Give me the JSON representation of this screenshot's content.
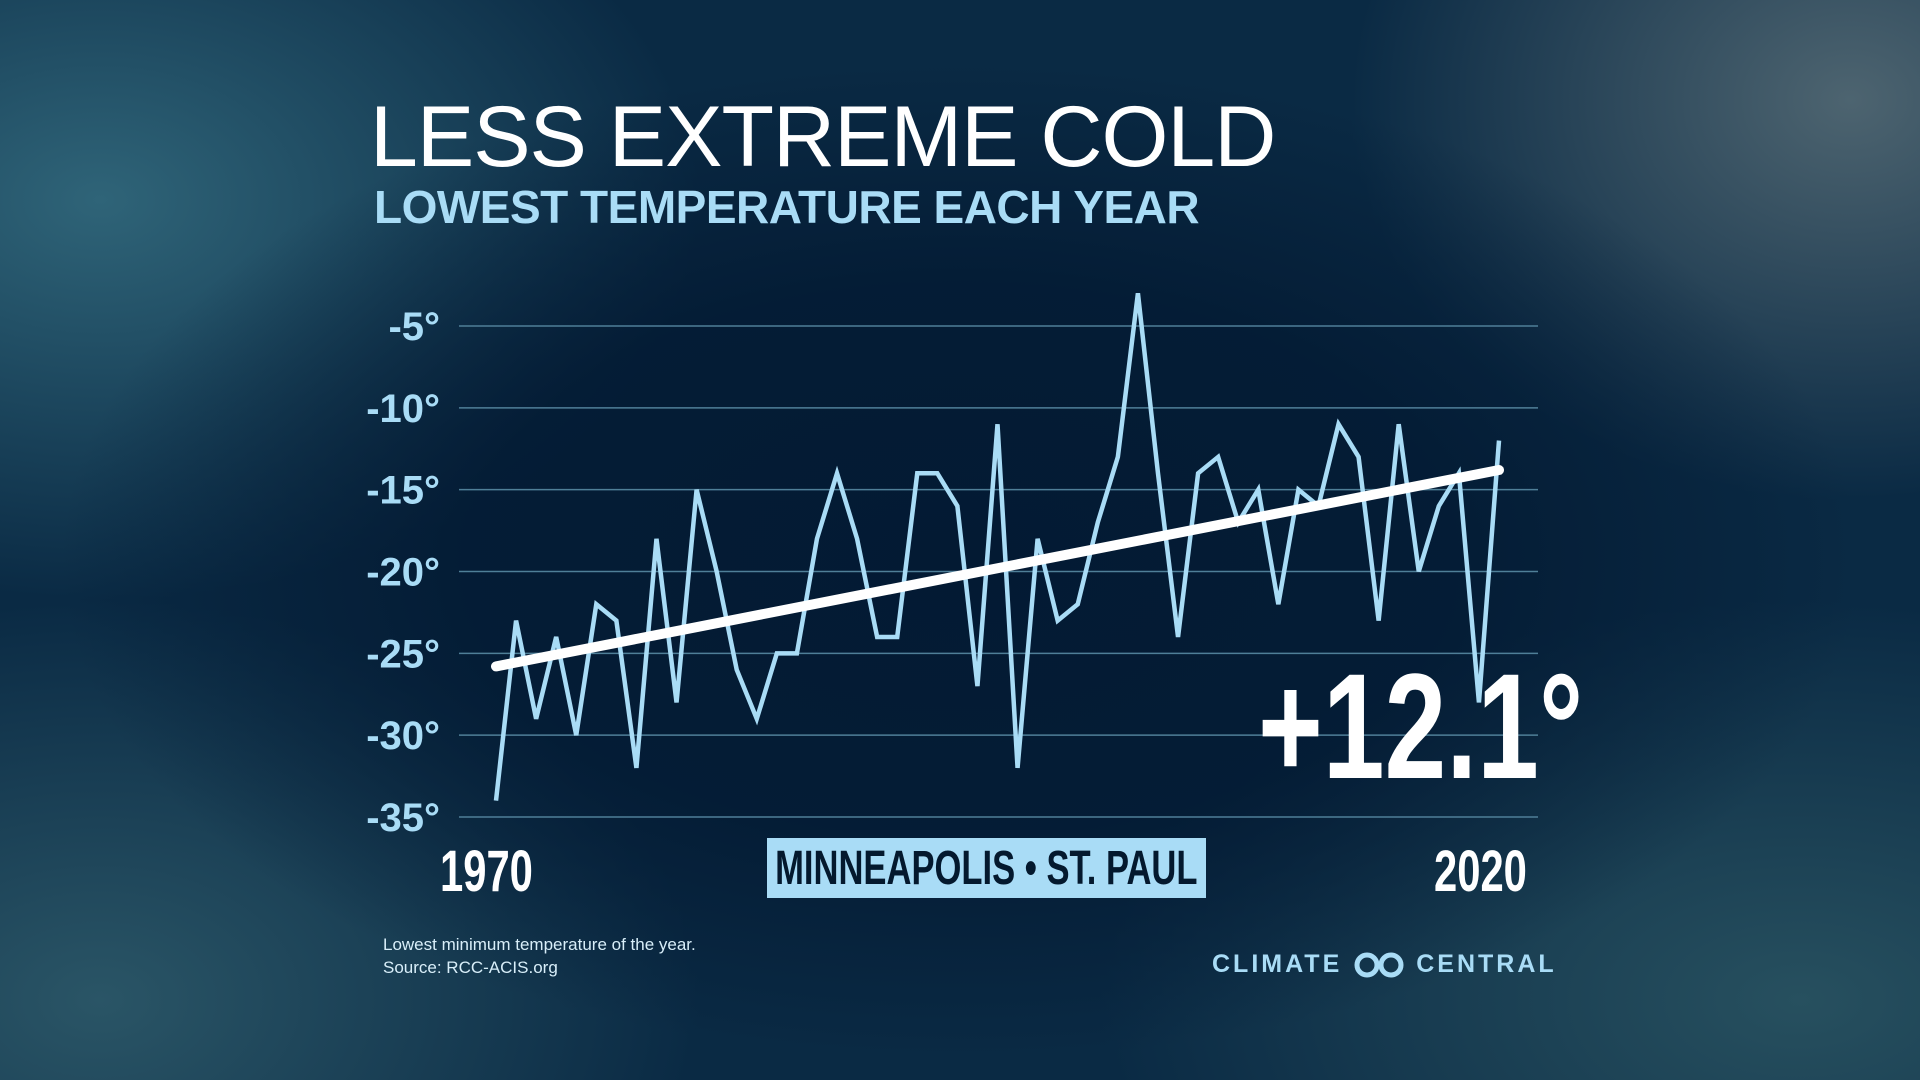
{
  "header": {
    "title": "LESS EXTREME COLD",
    "subtitle": "LOWEST TEMPERATURE EACH YEAR"
  },
  "chart_data": {
    "type": "line",
    "title": "LESS EXTREME COLD",
    "subtitle": "LOWEST TEMPERATURE EACH YEAR",
    "xlabel": "",
    "ylabel": "",
    "x_tick_labels": [
      "1970",
      "2020"
    ],
    "y_tick_labels": [
      "-5°",
      "-10°",
      "-15°",
      "-20°",
      "-25°",
      "-30°",
      "-35°"
    ],
    "y_ticks": [
      -5,
      -10,
      -15,
      -20,
      -25,
      -30,
      -35
    ],
    "xlim": [
      1970,
      2020
    ],
    "ylim": [
      -35,
      -5
    ],
    "grid": true,
    "x": [
      1970,
      1971,
      1972,
      1973,
      1974,
      1975,
      1976,
      1977,
      1978,
      1979,
      1980,
      1981,
      1982,
      1983,
      1984,
      1985,
      1986,
      1987,
      1988,
      1989,
      1990,
      1991,
      1992,
      1993,
      1994,
      1995,
      1996,
      1997,
      1998,
      1999,
      2000,
      2001,
      2002,
      2003,
      2004,
      2005,
      2006,
      2007,
      2008,
      2009,
      2010,
      2011,
      2012,
      2013,
      2014,
      2015,
      2016,
      2017,
      2018,
      2019,
      2020
    ],
    "series": [
      {
        "values": [
          -34,
          -23,
          -29,
          -24,
          -30,
          -22,
          -23,
          -32,
          -18,
          -28,
          -15,
          -20,
          -26,
          -29,
          -25,
          -25,
          -18,
          -14,
          -18,
          -24,
          -24,
          -14,
          -14,
          -16,
          -27,
          -11,
          -32,
          -18,
          -23,
          -22,
          -17,
          -13,
          -3,
          -14,
          -24,
          -14,
          -13,
          -17,
          -15,
          -22,
          -15,
          -16,
          -11,
          -13,
          -23,
          -11,
          -20,
          -16,
          -14,
          -28,
          -12
        ],
        "color": "#a9dcf6"
      }
    ],
    "trend": {
      "start": [
        1970,
        -25.8
      ],
      "end": [
        2020,
        -13.8
      ],
      "color": "#ffffff"
    },
    "annotation": "+12.1°",
    "location_label": "MINNEAPOLIS • ST. PAUL"
  },
  "footer": {
    "note": "Lowest minimum temperature of the year.",
    "source": "Source: RCC-ACIS.org",
    "brand_left": "CLIMATE",
    "brand_right": "CENTRAL"
  }
}
